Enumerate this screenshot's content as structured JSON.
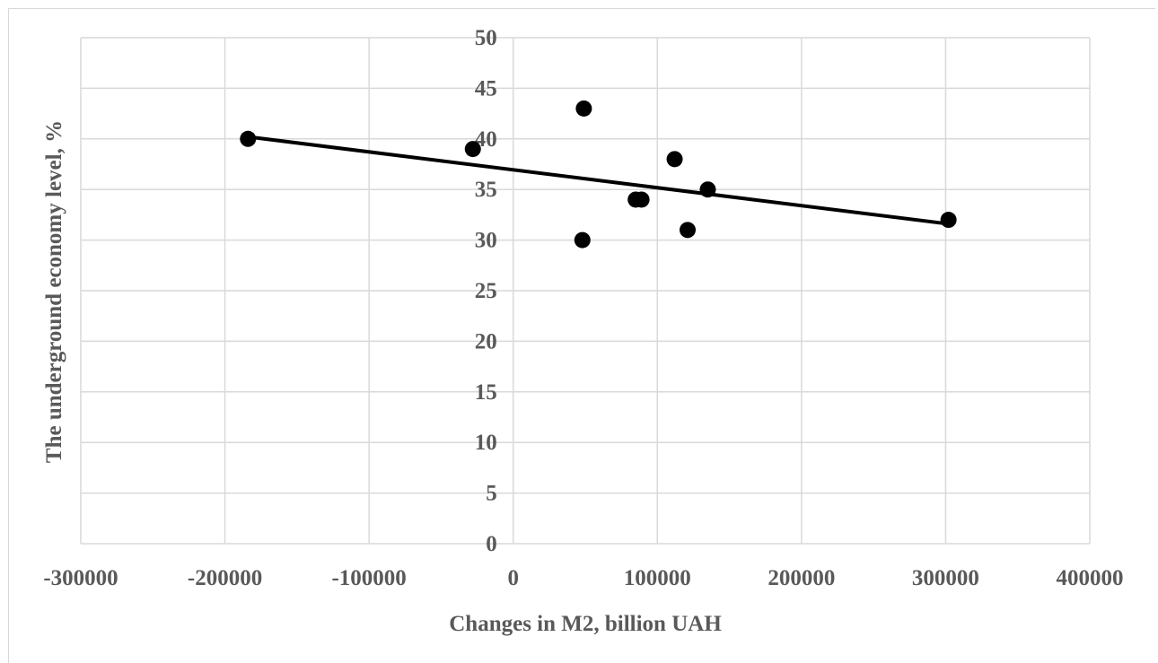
{
  "chart_data": {
    "type": "scatter",
    "title": "",
    "xlabel": "Changes in M2, billion UAH",
    "ylabel": "The underground economy level, %",
    "xlim": [
      -300000,
      400000
    ],
    "ylim": [
      0,
      50
    ],
    "x_ticks": [
      -300000,
      -200000,
      -100000,
      0,
      100000,
      200000,
      300000,
      400000
    ],
    "y_ticks": [
      0,
      5,
      10,
      15,
      20,
      25,
      30,
      35,
      40,
      45,
      50
    ],
    "x_tick_labels": [
      "-300000",
      "-200000",
      "-100000",
      "0",
      "100000",
      "200000",
      "300000",
      "400000"
    ],
    "y_tick_labels": [
      "0",
      "5",
      "10",
      "15",
      "20",
      "25",
      "30",
      "35",
      "40",
      "45",
      "50"
    ],
    "grid": true,
    "legend": "none",
    "marker_color": "#000000",
    "grid_color": "#d9d9d9",
    "points": [
      {
        "x": -184000,
        "y": 40
      },
      {
        "x": -28000,
        "y": 39
      },
      {
        "x": 49000,
        "y": 43
      },
      {
        "x": 48000,
        "y": 30
      },
      {
        "x": 85000,
        "y": 34
      },
      {
        "x": 89000,
        "y": 34
      },
      {
        "x": 112000,
        "y": 38
      },
      {
        "x": 121000,
        "y": 31
      },
      {
        "x": 135000,
        "y": 35
      },
      {
        "x": 302000,
        "y": 32
      }
    ],
    "trendline": {
      "type": "linear",
      "x": [
        -184000,
        302000
      ],
      "y": [
        40.2,
        31.6
      ]
    }
  }
}
